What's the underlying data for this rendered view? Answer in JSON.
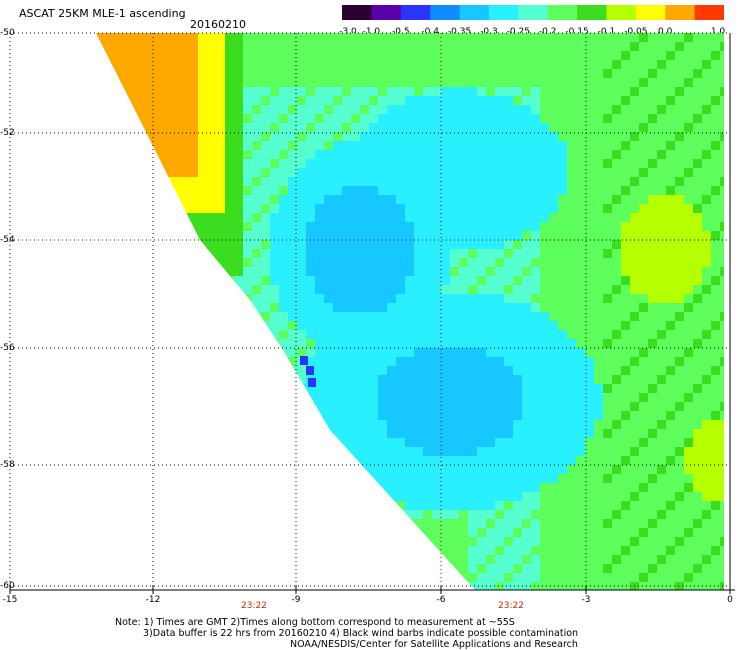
{
  "title": "ASCAT 25KM MLE-1 ascending",
  "date": "20160210",
  "colorbar": {
    "labels": [
      "-3.0",
      "-1.0",
      "-0.5",
      "-0.4",
      "-0.35",
      "-0.3",
      "-0.25",
      "-0.2",
      "-0.15",
      "-0.1",
      "-0.05",
      "0.0",
      "1.0"
    ],
    "colors": [
      "#2a0030",
      "#5a00a8",
      "#2a34ff",
      "#0f8cff",
      "#16c8ff",
      "#28f0ff",
      "#56ffd0",
      "#5cff5c",
      "#3cdc1e",
      "#b6ff00",
      "#ffff00",
      "#ffa800",
      "#ff3a00"
    ]
  },
  "axes": {
    "lat_labels": [
      "-50",
      "-52",
      "-54",
      "-56",
      "-58",
      "-60"
    ],
    "lon_labels": [
      "-15",
      "-12",
      "-9",
      "-6",
      "-3",
      "0"
    ],
    "lon_range": [
      -15,
      0
    ],
    "lat_range": [
      -50,
      -60
    ]
  },
  "times": [
    {
      "label": "23:22",
      "lon": -10.5
    },
    {
      "label": "23:22",
      "lon": -5.4
    }
  ],
  "notes": [
    "Note: 1) Times are GMT 2)Times along bottom correspond to measurement at ~55S",
    "3)Data buffer is 22 hrs from 20160210 4) Black wind barbs indicate possible contamination",
    "NOAA/NESDIS/Center for Satellite Applications and Research"
  ]
}
